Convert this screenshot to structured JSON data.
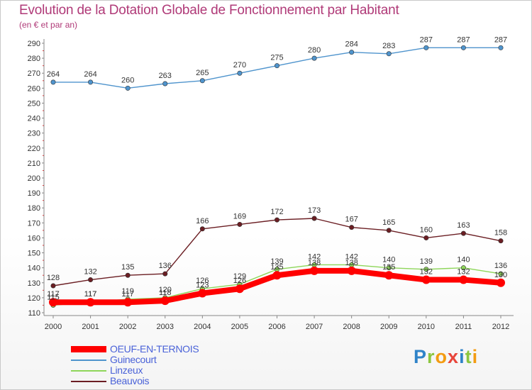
{
  "chart_data": {
    "type": "line",
    "title": "Evolution de la Dotation Globale de Fonctionnement par Habitant",
    "subtitle": "(en € et par an)",
    "xlabel": "",
    "ylabel": "",
    "ylim": [
      110,
      290
    ],
    "ytick_step": 10,
    "x": [
      "2000",
      "2001",
      "2002",
      "2003",
      "2004",
      "2005",
      "2006",
      "2007",
      "2008",
      "2009",
      "2010",
      "2011",
      "2012"
    ],
    "grid": false,
    "legend_position": "bottom-left",
    "series": [
      {
        "name": "OEUF-EN-TERNOIS",
        "color": "#ff0000",
        "values": [
          117,
          117,
          117,
          118,
          123,
          126,
          135,
          138,
          138,
          135,
          132,
          132,
          130
        ],
        "labels": [
          "117",
          "117",
          "117",
          "118",
          "123",
          "126",
          "135",
          "138",
          "138",
          "135",
          "132",
          "132",
          "130"
        ]
      },
      {
        "name": "Guinecourt",
        "color": "#4f94cd",
        "values": [
          264,
          264,
          260,
          263,
          265,
          270,
          275,
          280,
          284,
          283,
          287,
          287,
          287
        ],
        "labels": [
          "264",
          "264",
          "260",
          "263",
          "265",
          "270",
          "275",
          "280",
          "284",
          "283",
          "287",
          "287",
          "287"
        ]
      },
      {
        "name": "Linzeux",
        "color": "#8ed65a",
        "values": [
          115,
          117,
          119,
          120,
          126,
          129,
          139,
          142,
          142,
          140,
          139,
          140,
          136
        ],
        "labels": [
          "115",
          "117",
          "119",
          "120",
          "126",
          "129",
          "139",
          "142",
          "142",
          "140",
          "139",
          "140",
          "136"
        ]
      },
      {
        "name": "Beauvois",
        "color": "#6b1e23",
        "values": [
          128,
          132,
          135,
          136,
          166,
          169,
          172,
          173,
          167,
          165,
          160,
          163,
          158
        ],
        "labels": [
          "128",
          "132",
          "135",
          "136",
          "166",
          "169",
          "172",
          "173",
          "167",
          "165",
          "160",
          "163",
          "158"
        ]
      }
    ]
  },
  "logo": {
    "letters": [
      {
        "ch": "P",
        "color": "#2f83c8"
      },
      {
        "ch": "r",
        "color": "#8cc63f"
      },
      {
        "ch": "o",
        "color": "#f39c12"
      },
      {
        "ch": "x",
        "color": "#e8463b"
      },
      {
        "ch": "i",
        "color": "#2f83c8"
      },
      {
        "ch": "t",
        "color": "#8cc63f"
      },
      {
        "ch": "i",
        "color": "#f39c12"
      }
    ]
  }
}
